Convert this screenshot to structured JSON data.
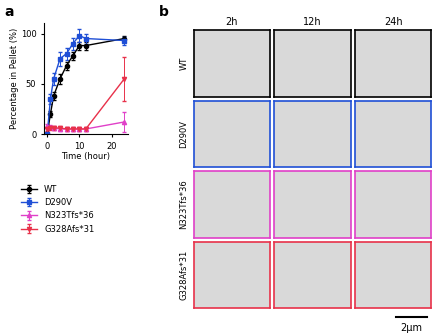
{
  "panel_labels": [
    "a",
    "b"
  ],
  "chart_data": {
    "type": "line",
    "x_label": "Time (hour)",
    "y_label": "Percentage in Pellet (%)",
    "x": [
      0,
      1,
      2,
      4,
      6,
      8,
      10,
      12,
      24
    ],
    "xlim": [
      -1,
      25
    ],
    "xticks": [
      0,
      10,
      20
    ],
    "ylim": [
      0,
      110
    ],
    "yticks": [
      0,
      50,
      100
    ],
    "grid": false,
    "series": [
      {
        "name": "WT",
        "color": "#000000",
        "marker": "o",
        "values": [
          0,
          20,
          38,
          55,
          68,
          78,
          88,
          88,
          95
        ],
        "errors": [
          1,
          3,
          4,
          5,
          4,
          4,
          4,
          4,
          3
        ]
      },
      {
        "name": "D290V",
        "color": "#1f4fd6",
        "marker": "s",
        "values": [
          0,
          35,
          55,
          75,
          80,
          90,
          98,
          95,
          93
        ],
        "errors": [
          1,
          5,
          6,
          7,
          6,
          6,
          6,
          5,
          4
        ]
      },
      {
        "name": "N323Tfs*36",
        "color": "#e040c8",
        "marker": "^",
        "values": [
          8,
          7,
          6,
          5,
          5,
          5,
          5,
          5,
          12
        ],
        "errors": [
          2,
          2,
          2,
          2,
          2,
          2,
          2,
          2,
          10
        ]
      },
      {
        "name": "G328Afs*31",
        "color": "#e8314a",
        "marker": "v",
        "values": [
          5,
          6,
          6,
          6,
          5,
          5,
          5,
          5,
          55
        ],
        "errors": [
          2,
          2,
          2,
          2,
          2,
          2,
          2,
          2,
          22
        ]
      }
    ]
  },
  "micrographs": {
    "columns": [
      "2h",
      "12h",
      "24h"
    ],
    "rows": [
      {
        "name": "WT",
        "color": "#000000"
      },
      {
        "name": "D290V",
        "color": "#1f4fd6"
      },
      {
        "name": "N323Tfs*36",
        "color": "#e040c8"
      },
      {
        "name": "G328Afs*31",
        "color": "#e8314a"
      }
    ],
    "scale_bar": "2μm"
  }
}
